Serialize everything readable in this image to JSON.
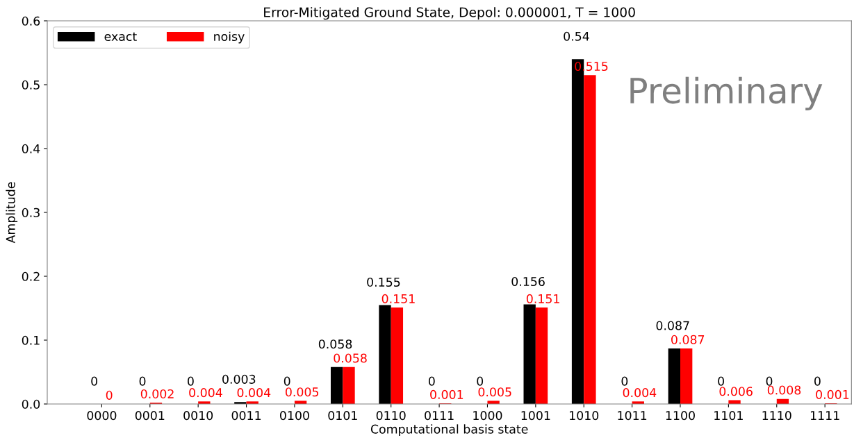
{
  "chart_data": {
    "type": "bar",
    "title": "Error-Mitigated Ground State, Depol: 0.000001, T = 1000",
    "xlabel": "Computational basis state",
    "ylabel": "Amplitude",
    "categories": [
      "0000",
      "0001",
      "0010",
      "0011",
      "0100",
      "0101",
      "0110",
      "0111",
      "1000",
      "1001",
      "1010",
      "1011",
      "1100",
      "1101",
      "1110",
      "1111"
    ],
    "series": [
      {
        "name": "exact",
        "color": "#000000",
        "values": [
          0,
          0,
          0,
          0.003,
          0,
          0.058,
          0.155,
          0,
          0,
          0.156,
          0.54,
          0,
          0.087,
          0,
          0,
          0
        ]
      },
      {
        "name": "noisy",
        "color": "#ff0000",
        "values": [
          0,
          0.002,
          0.004,
          0.004,
          0.005,
          0.058,
          0.151,
          0.001,
          0.005,
          0.151,
          0.515,
          0.004,
          0.087,
          0.006,
          0.008,
          0.001
        ]
      }
    ],
    "ylim": [
      0,
      0.6
    ],
    "yticks": [
      {
        "value": 0,
        "label": "0.0"
      },
      0.1,
      0.2,
      0.3,
      0.4,
      0.5,
      0.6
    ],
    "data_labels": true,
    "legend": "top left",
    "grid": false,
    "annotations": [
      "Preliminary"
    ]
  }
}
